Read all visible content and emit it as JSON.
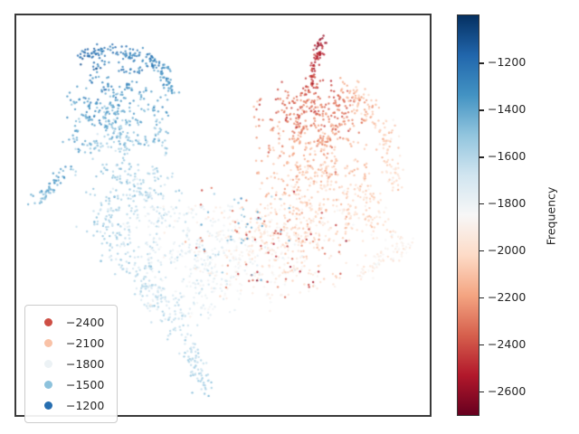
{
  "chart_data": {
    "type": "scatter",
    "title": "",
    "xlabel": "",
    "ylabel": "",
    "axis_tick_labels": "none",
    "grid": false,
    "frame_color": "#3a3a3a",
    "background": "#ffffff",
    "vmin": -2700,
    "vmax": -1000,
    "colormap": {
      "name": "RdBu",
      "stops": [
        [
          0.0,
          "#67001f"
        ],
        [
          0.1,
          "#b2182b"
        ],
        [
          0.2,
          "#d6604d"
        ],
        [
          0.3,
          "#f4a582"
        ],
        [
          0.4,
          "#fddbc7"
        ],
        [
          0.5,
          "#f7f7f7"
        ],
        [
          0.6,
          "#d1e5f0"
        ],
        [
          0.7,
          "#92c5de"
        ],
        [
          0.8,
          "#4393c3"
        ],
        [
          0.9,
          "#2166ac"
        ],
        [
          1.0,
          "#053061"
        ]
      ]
    },
    "colorbar": {
      "label": "Frequency",
      "position": "right",
      "tick_values": [
        -1200,
        -1400,
        -1600,
        -1800,
        -2000,
        -2200,
        -2400,
        -2600
      ],
      "tick_labels": [
        "−1200",
        "−1400",
        "−1600",
        "−1800",
        "−2000",
        "−2200",
        "−2400",
        "−2600"
      ]
    },
    "legend": {
      "position": "lower left",
      "entries": [
        {
          "label": "−2400",
          "value": -2400
        },
        {
          "label": "−2100",
          "value": -2100
        },
        {
          "label": "−1800",
          "value": -1800
        },
        {
          "label": "−1500",
          "value": -1500
        },
        {
          "label": "−1200",
          "value": -1200
        }
      ]
    },
    "points_style": {
      "radius": 1.2,
      "alpha": 0.8
    },
    "seed": 7,
    "components": [
      {
        "name": "blue-head-arc-left",
        "kind": "strand",
        "x1": 0.155,
        "y1": 0.105,
        "x2": 0.225,
        "y2": 0.082,
        "n": 45,
        "jitter": 0.007,
        "v1": -1180,
        "v2": -1260,
        "vj": 40
      },
      {
        "name": "blue-head-arc-mid",
        "kind": "strand",
        "x1": 0.235,
        "y1": 0.092,
        "x2": 0.305,
        "y2": 0.108,
        "n": 40,
        "jitter": 0.007,
        "v1": -1210,
        "v2": -1300,
        "vj": 40
      },
      {
        "name": "blue-head-arc-right",
        "kind": "strand",
        "x1": 0.315,
        "y1": 0.1,
        "x2": 0.36,
        "y2": 0.14,
        "n": 35,
        "jitter": 0.006,
        "v1": -1250,
        "v2": -1360,
        "vj": 45
      },
      {
        "name": "blue-head-edge",
        "kind": "strand",
        "x1": 0.36,
        "y1": 0.14,
        "x2": 0.378,
        "y2": 0.21,
        "n": 35,
        "jitter": 0.008,
        "v1": -1320,
        "v2": -1420,
        "vj": 50
      },
      {
        "name": "blue-body",
        "kind": "blob",
        "cx": 0.245,
        "cy": 0.265,
        "rx": 0.115,
        "ry": 0.135,
        "n": 430,
        "vc": -1430,
        "vdx": -40,
        "vdy": -170,
        "vj": 70
      },
      {
        "name": "blue-left-tail",
        "kind": "strand",
        "x1": 0.12,
        "y1": 0.38,
        "x2": 0.045,
        "y2": 0.478,
        "n": 55,
        "jitter": 0.008,
        "v1": -1380,
        "v2": -1470,
        "vj": 55
      },
      {
        "name": "blue-lower-bridge",
        "kind": "blob",
        "cx": 0.285,
        "cy": 0.465,
        "rx": 0.105,
        "ry": 0.085,
        "n": 210,
        "vc": -1610,
        "vdx": -50,
        "vdy": -70,
        "vj": 70
      },
      {
        "name": "left-arm-upper",
        "kind": "strand",
        "x1": 0.2,
        "y1": 0.5,
        "x2": 0.3,
        "y2": 0.66,
        "n": 95,
        "jitter": 0.02,
        "v1": -1570,
        "v2": -1640,
        "vj": 65
      },
      {
        "name": "left-arm-lower",
        "kind": "strand",
        "x1": 0.3,
        "y1": 0.66,
        "x2": 0.405,
        "y2": 0.79,
        "n": 95,
        "jitter": 0.018,
        "v1": -1640,
        "v2": -1630,
        "vj": 65
      },
      {
        "name": "bottom-tail",
        "kind": "strand",
        "x1": 0.405,
        "y1": 0.79,
        "x2": 0.462,
        "y2": 0.955,
        "n": 75,
        "jitter": 0.011,
        "v1": -1630,
        "v2": -1560,
        "vj": 55
      },
      {
        "name": "center-mass",
        "kind": "blob",
        "cx": 0.47,
        "cy": 0.615,
        "rx": 0.145,
        "ry": 0.135,
        "n": 470,
        "vc": -1800,
        "vdx": -110,
        "vdy": 30,
        "vj": 85
      },
      {
        "name": "center-right-mass",
        "kind": "blob",
        "cx": 0.67,
        "cy": 0.59,
        "rx": 0.13,
        "ry": 0.105,
        "n": 300,
        "vc": -1970,
        "vdx": -50,
        "vdy": 60,
        "vj": 85
      },
      {
        "name": "right-body",
        "kind": "blob",
        "cx": 0.715,
        "cy": 0.37,
        "rx": 0.13,
        "ry": 0.16,
        "n": 500,
        "vc": -2120,
        "vdx": 30,
        "vdy": 150,
        "vj": 85
      },
      {
        "name": "red-spike",
        "kind": "strand",
        "x1": 0.742,
        "y1": 0.048,
        "x2": 0.706,
        "y2": 0.19,
        "n": 85,
        "jitter": 0.007,
        "v1": -2600,
        "v2": -2380,
        "vj": 55
      },
      {
        "name": "red-upper-body",
        "kind": "blob",
        "cx": 0.72,
        "cy": 0.245,
        "rx": 0.085,
        "ry": 0.075,
        "n": 190,
        "vc": -2310,
        "vdx": 0,
        "vdy": 80,
        "vj": 75
      },
      {
        "name": "right-edge-arc-upper",
        "kind": "strand",
        "x1": 0.8,
        "y1": 0.175,
        "x2": 0.895,
        "y2": 0.3,
        "n": 85,
        "jitter": 0.014,
        "v1": -2140,
        "v2": -2060,
        "vj": 65
      },
      {
        "name": "right-edge-arc-lower",
        "kind": "strand",
        "x1": 0.895,
        "y1": 0.3,
        "x2": 0.915,
        "y2": 0.44,
        "n": 60,
        "jitter": 0.012,
        "v1": -2060,
        "v2": -1990,
        "vj": 60
      },
      {
        "name": "right-lower-patch",
        "kind": "blob",
        "cx": 0.85,
        "cy": 0.5,
        "rx": 0.06,
        "ry": 0.07,
        "n": 90,
        "vc": -2010,
        "vdx": 0,
        "vdy": 30,
        "vj": 70
      },
      {
        "name": "right-wing",
        "kind": "strand",
        "x1": 0.83,
        "y1": 0.645,
        "x2": 0.95,
        "y2": 0.56,
        "n": 75,
        "jitter": 0.012,
        "v1": -1950,
        "v2": -1880,
        "vj": 55
      },
      {
        "name": "red-speckles",
        "kind": "blob",
        "cx": 0.62,
        "cy": 0.565,
        "rx": 0.175,
        "ry": 0.125,
        "n": 65,
        "vc": -2380,
        "vdx": 0,
        "vdy": 0,
        "vj": 110,
        "chain": 1
      },
      {
        "name": "blue-speckles",
        "kind": "blob",
        "cx": 0.54,
        "cy": 0.56,
        "rx": 0.12,
        "ry": 0.1,
        "n": 35,
        "vc": -1470,
        "vdx": 0,
        "vdy": 0,
        "vj": 90,
        "chain": 1
      }
    ]
  }
}
